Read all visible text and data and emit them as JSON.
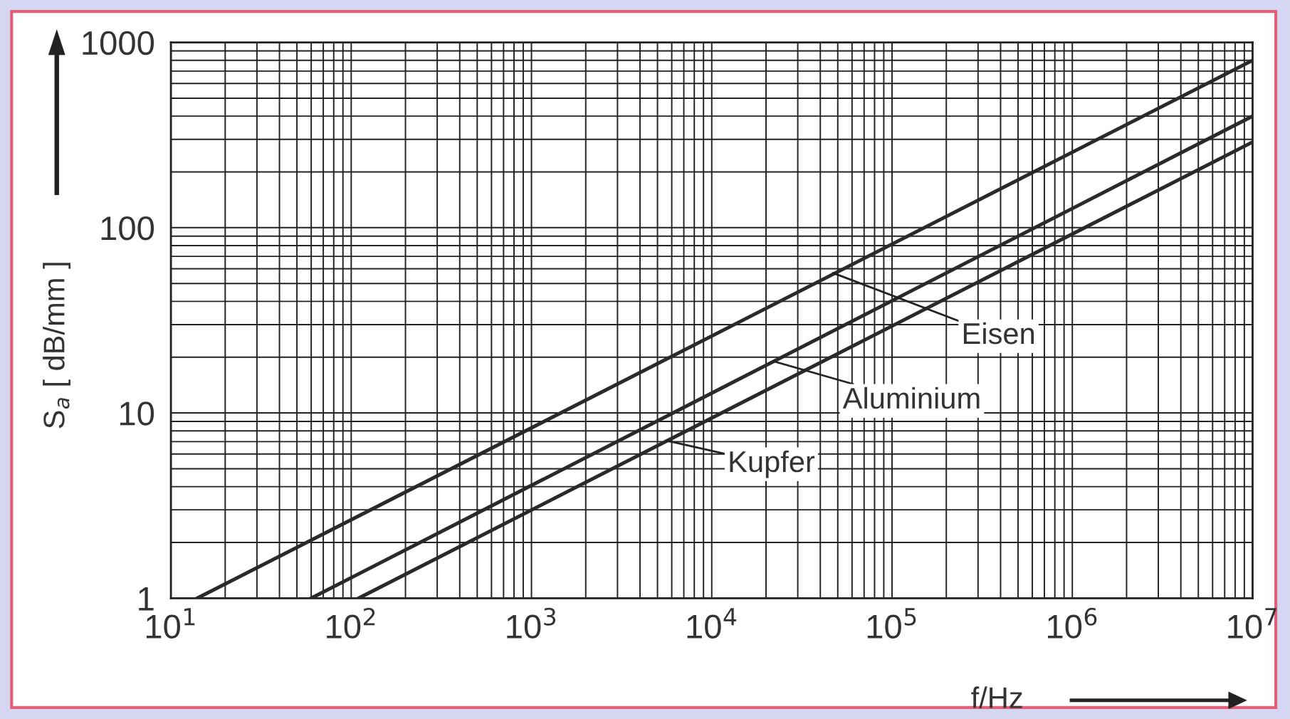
{
  "chart_data": {
    "type": "line",
    "xlabel": "f/Hz",
    "ylabel": "S$_{a}$ [ dB/mm ]",
    "series": [
      {
        "x": [
          14,
          10000000
        ],
        "values": [
          1,
          800
        ],
        "color": "#2a2a2a"
      },
      {
        "x": [
          60,
          10000000
        ],
        "values": [
          1,
          400
        ],
        "color": "#2a2a2a"
      },
      {
        "x": [
          110,
          10000000
        ],
        "values": [
          1,
          290
        ],
        "color": "#2a2a2a"
      }
    ],
    "annotations": [
      {
        "text": "Eisen",
        "x": 47000,
        "y": 57
      },
      {
        "text": "Aluminium",
        "x": 22000,
        "y": 19
      },
      {
        "text": "Kupfer",
        "x": 5600,
        "y": 7.1
      }
    ],
    "log": "xy",
    "xlim": [
      10,
      10000000
    ],
    "ylim": [
      1,
      1000
    ],
    "xticks": [
      {
        "value": 10,
        "label": "10$^{1}$"
      },
      {
        "value": 100,
        "label": "10$^{2}$"
      },
      {
        "value": 1000,
        "label": "10$^{3}$"
      },
      {
        "value": 10000,
        "label": "10$^{4}$"
      },
      {
        "value": 100000,
        "label": "10$^{5}$"
      },
      {
        "value": 1000000,
        "label": "10$^{6}$"
      },
      {
        "value": 10000000,
        "label": "10$^{7}$"
      }
    ],
    "yticks": [
      1,
      10,
      100,
      1000
    ],
    "grid": true,
    "marker": "none",
    "line_style": "solid"
  }
}
